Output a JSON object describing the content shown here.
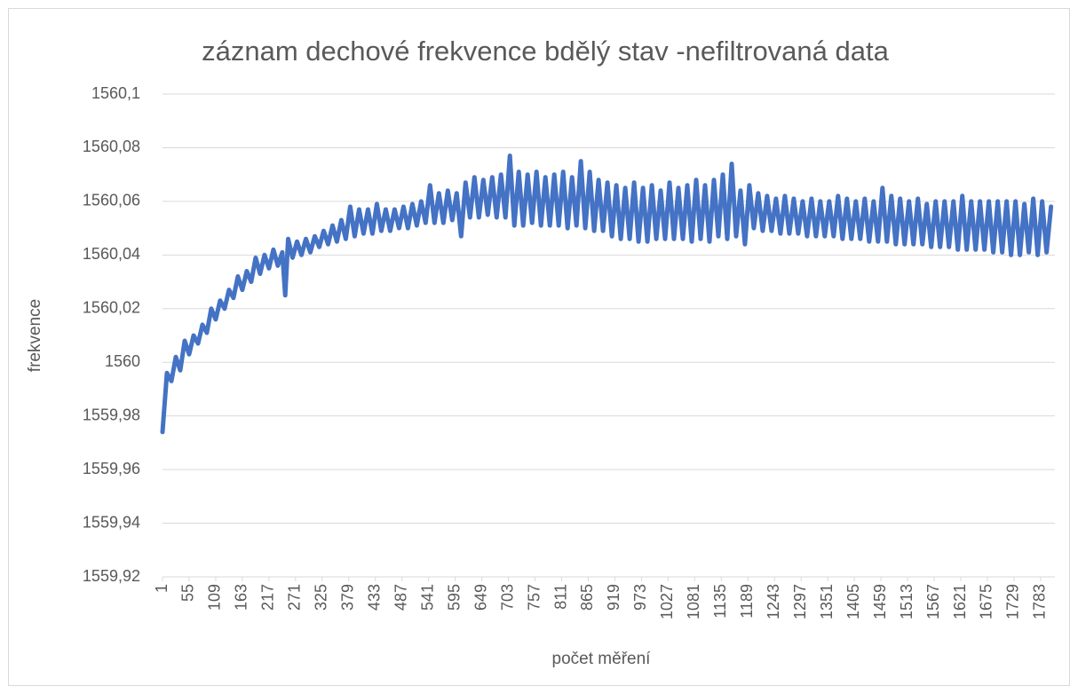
{
  "chart_data": {
    "type": "line",
    "title": "záznam dechové frekvence bdělý stav -nefiltrovaná data",
    "x_label": "počet měření",
    "y_label": "frekvence",
    "color": "#4472c4",
    "grid": true,
    "xlim": [
      1,
      1812
    ],
    "xticks": [
      1,
      55,
      109,
      163,
      217,
      271,
      325,
      379,
      433,
      487,
      541,
      595,
      649,
      703,
      757,
      811,
      865,
      919,
      973,
      1027,
      1081,
      1135,
      1189,
      1243,
      1297,
      1351,
      1405,
      1459,
      1513,
      1567,
      1621,
      1675,
      1729,
      1783
    ],
    "ylim": [
      1559.92,
      1560.1
    ],
    "yticks": [
      {
        "value": 1559.92,
        "label": "1559,92"
      },
      {
        "value": 1559.94,
        "label": "1559,94"
      },
      {
        "value": 1559.96,
        "label": "1559,96"
      },
      {
        "value": 1559.98,
        "label": "1559,98"
      },
      1560,
      {
        "value": 1560.02,
        "label": "1560,02"
      },
      {
        "value": 1560.04,
        "label": "1560,04"
      },
      {
        "value": 1560.06,
        "label": "1560,06"
      },
      {
        "value": 1560.08,
        "label": "1560,08"
      },
      {
        "value": 1560.1,
        "label": "1560,1"
      }
    ],
    "x": [
      1,
      10,
      19,
      28,
      37,
      46,
      55,
      64,
      73,
      82,
      91,
      100,
      109,
      118,
      127,
      136,
      145,
      154,
      163,
      172,
      181,
      190,
      199,
      208,
      217,
      226,
      235,
      244,
      250,
      256,
      265,
      274,
      283,
      292,
      301,
      310,
      319,
      328,
      337,
      346,
      355,
      364,
      373,
      382,
      391,
      400,
      409,
      418,
      427,
      436,
      445,
      454,
      463,
      472,
      481,
      490,
      499,
      508,
      517,
      526,
      535,
      544,
      553,
      562,
      571,
      580,
      589,
      598,
      607,
      616,
      625,
      634,
      643,
      652,
      661,
      670,
      679,
      688,
      697,
      706,
      715,
      724,
      733,
      742,
      751,
      760,
      769,
      778,
      787,
      796,
      805,
      814,
      823,
      832,
      841,
      850,
      859,
      868,
      877,
      886,
      895,
      904,
      913,
      922,
      931,
      940,
      949,
      958,
      967,
      976,
      985,
      994,
      1003,
      1012,
      1021,
      1030,
      1039,
      1048,
      1057,
      1066,
      1075,
      1084,
      1093,
      1102,
      1111,
      1120,
      1129,
      1138,
      1147,
      1156,
      1165,
      1174,
      1183,
      1192,
      1201,
      1210,
      1219,
      1228,
      1237,
      1246,
      1255,
      1264,
      1273,
      1282,
      1291,
      1300,
      1309,
      1318,
      1327,
      1336,
      1345,
      1354,
      1363,
      1372,
      1381,
      1390,
      1399,
      1408,
      1417,
      1426,
      1435,
      1444,
      1453,
      1462,
      1471,
      1480,
      1489,
      1498,
      1507,
      1516,
      1525,
      1534,
      1543,
      1552,
      1561,
      1570,
      1579,
      1588,
      1597,
      1606,
      1615,
      1624,
      1633,
      1642,
      1651,
      1660,
      1669,
      1678,
      1687,
      1696,
      1705,
      1714,
      1723,
      1732,
      1741,
      1750,
      1759,
      1768,
      1777,
      1786,
      1795,
      1804
    ],
    "values": [
      1559.974,
      1559.996,
      1559.993,
      1560.002,
      1559.997,
      1560.008,
      1560.003,
      1560.01,
      1560.007,
      1560.014,
      1560.011,
      1560.02,
      1560.016,
      1560.023,
      1560.02,
      1560.027,
      1560.024,
      1560.032,
      1560.027,
      1560.034,
      1560.03,
      1560.039,
      1560.033,
      1560.04,
      1560.035,
      1560.042,
      1560.036,
      1560.041,
      1560.025,
      1560.046,
      1560.039,
      1560.045,
      1560.04,
      1560.046,
      1560.041,
      1560.047,
      1560.043,
      1560.049,
      1560.044,
      1560.051,
      1560.045,
      1560.053,
      1560.046,
      1560.058,
      1560.047,
      1560.057,
      1560.048,
      1560.057,
      1560.048,
      1560.059,
      1560.049,
      1560.057,
      1560.049,
      1560.057,
      1560.05,
      1560.058,
      1560.05,
      1560.059,
      1560.051,
      1560.06,
      1560.052,
      1560.066,
      1560.052,
      1560.063,
      1560.052,
      1560.064,
      1560.053,
      1560.063,
      1560.047,
      1560.067,
      1560.054,
      1560.069,
      1560.054,
      1560.068,
      1560.055,
      1560.069,
      1560.054,
      1560.07,
      1560.054,
      1560.077,
      1560.051,
      1560.071,
      1560.051,
      1560.07,
      1560.052,
      1560.071,
      1560.051,
      1560.069,
      1560.051,
      1560.07,
      1560.051,
      1560.071,
      1560.05,
      1560.069,
      1560.051,
      1560.075,
      1560.05,
      1560.071,
      1560.049,
      1560.068,
      1560.049,
      1560.067,
      1560.047,
      1560.066,
      1560.046,
      1560.065,
      1560.046,
      1560.067,
      1560.045,
      1560.065,
      1560.045,
      1560.066,
      1560.046,
      1560.064,
      1560.046,
      1560.067,
      1560.046,
      1560.065,
      1560.046,
      1560.066,
      1560.045,
      1560.068,
      1560.046,
      1560.066,
      1560.045,
      1560.068,
      1560.047,
      1560.07,
      1560.046,
      1560.074,
      1560.047,
      1560.064,
      1560.044,
      1560.066,
      1560.05,
      1560.063,
      1560.049,
      1560.062,
      1560.049,
      1560.061,
      1560.048,
      1560.062,
      1560.048,
      1560.061,
      1560.048,
      1560.06,
      1560.047,
      1560.061,
      1560.047,
      1560.06,
      1560.047,
      1560.06,
      1560.047,
      1560.062,
      1560.046,
      1560.061,
      1560.046,
      1560.06,
      1560.046,
      1560.061,
      1560.045,
      1560.06,
      1560.045,
      1560.065,
      1560.045,
      1560.062,
      1560.044,
      1560.061,
      1560.044,
      1560.06,
      1560.044,
      1560.061,
      1560.044,
      1560.059,
      1560.043,
      1560.06,
      1560.043,
      1560.06,
      1560.043,
      1560.06,
      1560.042,
      1560.062,
      1560.042,
      1560.06,
      1560.042,
      1560.06,
      1560.042,
      1560.06,
      1560.041,
      1560.06,
      1560.041,
      1560.06,
      1560.04,
      1560.06,
      1560.04,
      1560.059,
      1560.041,
      1560.061,
      1560.04,
      1560.06,
      1560.041,
      1560.058
    ]
  }
}
